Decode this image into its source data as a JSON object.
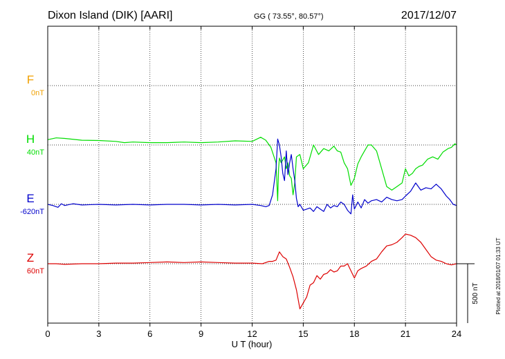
{
  "header": {
    "station": "Dixon Island (DIK)  [AARI]",
    "coords": "GG ( 73.55°,  80.57°)",
    "date": "2017/12/07"
  },
  "side_note": "Plotted at 2018/01/07 01:33 UT",
  "scale_label": "500 nT",
  "chart_data": {
    "type": "line",
    "title": "Dixon Island (DIK)  [AARI]",
    "xlabel": "U T (hour)",
    "ylabel": "",
    "xlim": [
      0,
      24
    ],
    "xticks": [
      "0",
      "3",
      "6",
      "9",
      "12",
      "15",
      "18",
      "21",
      "24"
    ],
    "grid": true,
    "scale_bar_nT": 500,
    "series": [
      {
        "name": "F",
        "baseline": "0nT",
        "color": "#f0a000",
        "offset_nT": 0,
        "x": [],
        "values": []
      },
      {
        "name": "H",
        "baseline": "40nT",
        "color": "#00dd00",
        "offset_nT": 0,
        "x": [
          0,
          0.5,
          1,
          2,
          3,
          4,
          4.5,
          5,
          6,
          7,
          8,
          9,
          10,
          11,
          12,
          12.5,
          12.8,
          13.1,
          13.4,
          13.5,
          13.55,
          13.6,
          13.7,
          13.9,
          14.0,
          14.1,
          14.2,
          14.3,
          14.4,
          14.5,
          14.6,
          14.8,
          15.0,
          15.3,
          15.6,
          15.9,
          16.2,
          16.5,
          16.8,
          17.0,
          17.2,
          17.4,
          17.6,
          17.8,
          18.0,
          18.2,
          18.4,
          18.6,
          18.8,
          19.0,
          19.3,
          19.6,
          19.9,
          20.2,
          20.5,
          20.8,
          21.0,
          21.2,
          21.4,
          21.6,
          21.8,
          22.0,
          22.3,
          22.6,
          22.9,
          23.2,
          23.5,
          23.7,
          23.9,
          24.0
        ],
        "values": [
          45,
          60,
          55,
          40,
          38,
          30,
          20,
          25,
          20,
          20,
          25,
          20,
          25,
          35,
          30,
          65,
          40,
          -20,
          -150,
          -470,
          -200,
          -110,
          -150,
          -100,
          -200,
          -150,
          -260,
          -280,
          -420,
          -320,
          -100,
          -80,
          -200,
          -150,
          0,
          -80,
          -30,
          -50,
          -10,
          -50,
          -60,
          -150,
          -200,
          -340,
          -280,
          -160,
          -100,
          -50,
          0,
          0,
          -50,
          -200,
          -350,
          -380,
          -350,
          -320,
          -200,
          -260,
          -240,
          -200,
          -180,
          -170,
          -120,
          -100,
          -120,
          -60,
          -30,
          -20,
          10,
          0
        ]
      },
      {
        "name": "E",
        "baseline": "-620nT",
        "color": "#0000cc",
        "offset_nT": 0,
        "x": [
          0,
          0.3,
          0.6,
          0.8,
          1.0,
          1.5,
          2,
          3,
          4,
          5,
          6,
          7,
          8,
          9,
          10,
          11,
          12,
          12.5,
          12.8,
          13.0,
          13.2,
          13.4,
          13.5,
          13.6,
          13.7,
          13.8,
          13.9,
          14.0,
          14.1,
          14.2,
          14.3,
          14.4,
          14.5,
          14.6,
          14.7,
          14.8,
          15.0,
          15.2,
          15.4,
          15.6,
          15.8,
          16.0,
          16.2,
          16.4,
          16.6,
          16.8,
          17.0,
          17.2,
          17.4,
          17.6,
          17.8,
          17.9,
          18.0,
          18.2,
          18.4,
          18.6,
          18.8,
          19.0,
          19.3,
          19.6,
          19.9,
          20.2,
          20.5,
          20.8,
          21.0,
          21.3,
          21.6,
          21.9,
          22.2,
          22.5,
          22.8,
          23.1,
          23.4,
          23.6,
          23.8,
          24.0
        ],
        "values": [
          0,
          -10,
          -25,
          5,
          -10,
          5,
          -5,
          0,
          -5,
          0,
          -5,
          0,
          0,
          -5,
          0,
          -5,
          0,
          -10,
          -20,
          -10,
          80,
          300,
          550,
          500,
          400,
          260,
          200,
          450,
          250,
          350,
          420,
          300,
          200,
          50,
          -20,
          0,
          -50,
          -40,
          -30,
          -60,
          -20,
          -40,
          -60,
          0,
          -30,
          -10,
          -20,
          20,
          0,
          -50,
          -80,
          80,
          -40,
          20,
          -30,
          40,
          10,
          30,
          40,
          20,
          60,
          40,
          30,
          40,
          70,
          110,
          180,
          120,
          140,
          130,
          170,
          130,
          70,
          40,
          0,
          -10
        ]
      },
      {
        "name": "Z",
        "baseline": "60nT",
        "color": "#dd0000",
        "offset_nT": 0,
        "x": [
          0,
          0.5,
          1,
          2,
          3,
          4,
          5,
          6,
          7,
          8,
          9,
          10,
          11,
          12,
          12.6,
          13.0,
          13.2,
          13.4,
          13.6,
          13.8,
          14.0,
          14.2,
          14.4,
          14.6,
          14.8,
          15.0,
          15.2,
          15.4,
          15.6,
          15.8,
          16.0,
          16.2,
          16.4,
          16.6,
          16.8,
          17.0,
          17.2,
          17.4,
          17.6,
          17.8,
          18.0,
          18.2,
          18.4,
          18.7,
          19.0,
          19.3,
          19.6,
          19.9,
          20.2,
          20.5,
          20.8,
          21.0,
          21.3,
          21.6,
          21.9,
          22.2,
          22.5,
          22.8,
          23.1,
          23.4,
          23.7,
          24.0
        ],
        "values": [
          0,
          0,
          -5,
          0,
          0,
          5,
          5,
          10,
          15,
          10,
          15,
          10,
          5,
          5,
          0,
          20,
          20,
          30,
          100,
          60,
          40,
          -30,
          -110,
          -220,
          -380,
          -330,
          -280,
          -180,
          -160,
          -100,
          -130,
          -90,
          -80,
          -50,
          -70,
          -60,
          -20,
          -20,
          0,
          -60,
          -120,
          -60,
          -40,
          -20,
          20,
          40,
          100,
          150,
          160,
          180,
          220,
          250,
          240,
          220,
          180,
          120,
          60,
          30,
          20,
          0,
          -10,
          0
        ]
      }
    ]
  }
}
